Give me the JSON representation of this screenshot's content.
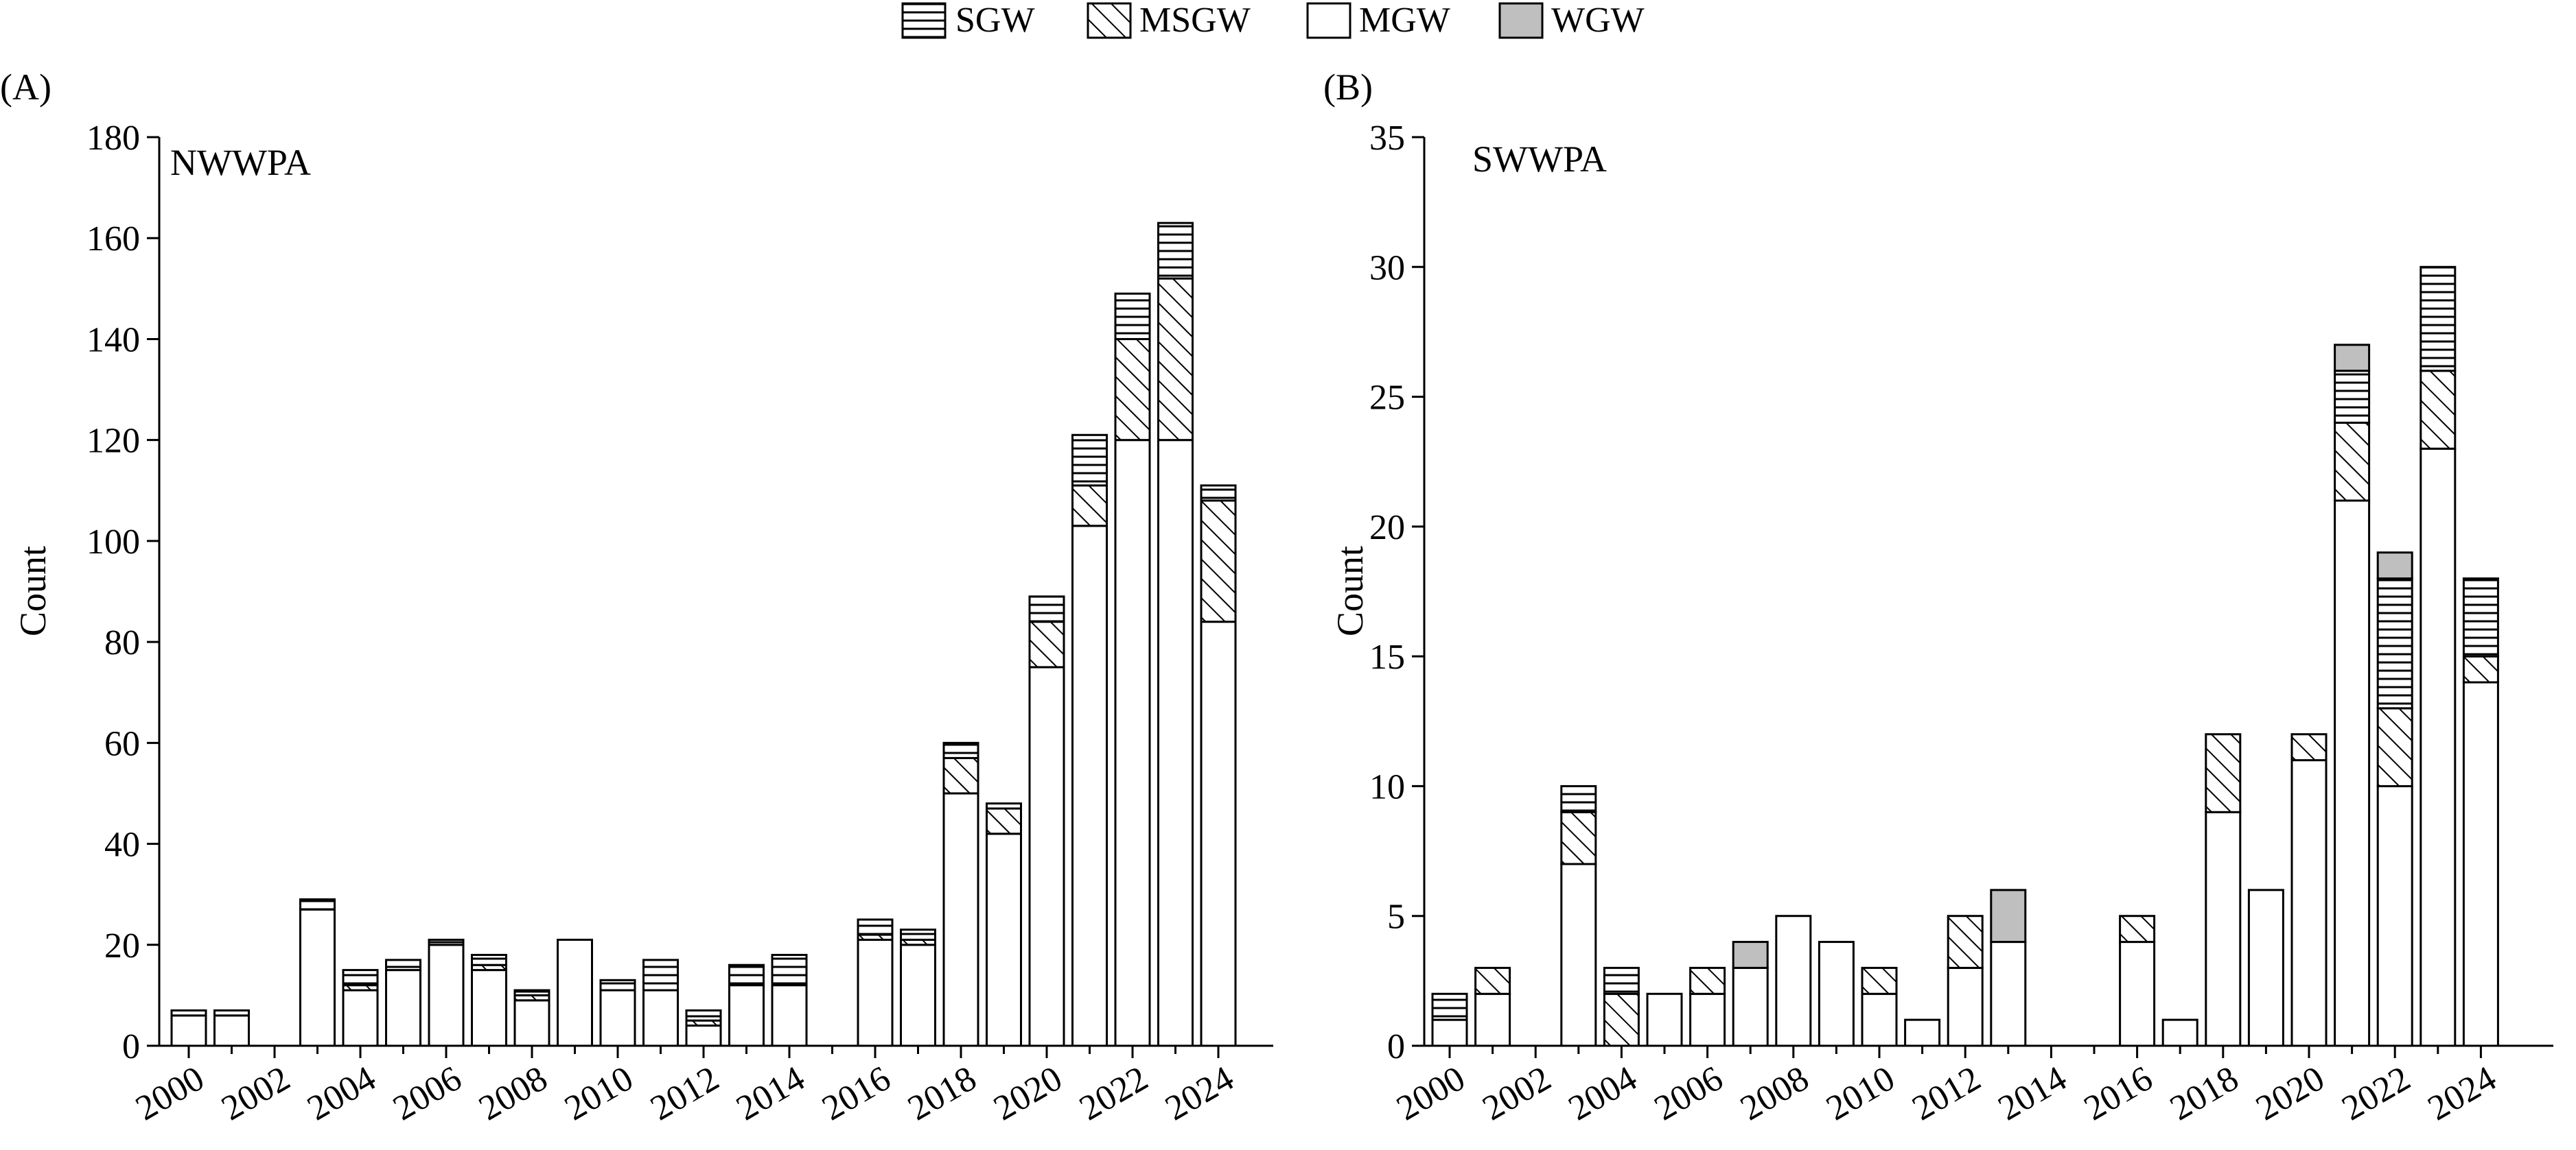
{
  "legend": {
    "placement": "top-center",
    "items": [
      {
        "key": "SGW",
        "label": "SGW",
        "pattern": "horizontal-lines"
      },
      {
        "key": "MSGW",
        "label": "MSGW",
        "pattern": "diagonal-hatch"
      },
      {
        "key": "MGW",
        "label": "MGW",
        "pattern": "white"
      },
      {
        "key": "WGW",
        "label": "WGW",
        "pattern": "gray",
        "color": "#bfbfbf"
      }
    ]
  },
  "chart_data": [
    {
      "type": "bar",
      "stacked": true,
      "panel_label": "(A)",
      "title": "NWWPA",
      "xlabel": "",
      "ylabel": "Count",
      "ylim": [
        0,
        180
      ],
      "yticks": [
        0,
        20,
        40,
        60,
        80,
        100,
        120,
        140,
        160,
        180
      ],
      "xticks": [
        "2000",
        "2002",
        "2004",
        "2006",
        "2008",
        "2010",
        "2012",
        "2014",
        "2016",
        "2018",
        "2020",
        "2022",
        "2024"
      ],
      "categories": [
        "2000",
        "2001",
        "2002",
        "2003",
        "2004",
        "2005",
        "2006",
        "2007",
        "2008",
        "2009",
        "2010",
        "2011",
        "2012",
        "2013",
        "2014",
        "2015",
        "2016",
        "2017",
        "2018",
        "2019",
        "2020",
        "2021",
        "2022",
        "2023",
        "2024"
      ],
      "series": [
        {
          "name": "MGW",
          "values": [
            6,
            6,
            0,
            27,
            11,
            15,
            20,
            15,
            9,
            21,
            11,
            11,
            4,
            12,
            12,
            0,
            21,
            20,
            50,
            42,
            75,
            103,
            120,
            120,
            84
          ]
        },
        {
          "name": "MSGW",
          "values": [
            0,
            0,
            0,
            0,
            1,
            0,
            0,
            1,
            1,
            0,
            0,
            0,
            1,
            0,
            0,
            0,
            1,
            1,
            7,
            5,
            9,
            8,
            20,
            32,
            24
          ]
        },
        {
          "name": "SGW",
          "values": [
            1,
            1,
            0,
            2,
            3,
            2,
            1,
            2,
            1,
            0,
            2,
            6,
            2,
            4,
            6,
            0,
            3,
            2,
            3,
            1,
            5,
            10,
            9,
            11,
            3
          ]
        },
        {
          "name": "WGW",
          "values": [
            0,
            0,
            0,
            0,
            0,
            0,
            0,
            0,
            0,
            0,
            0,
            0,
            0,
            0,
            0,
            0,
            0,
            0,
            0,
            0,
            0,
            0,
            0,
            0,
            0
          ]
        }
      ]
    },
    {
      "type": "bar",
      "stacked": true,
      "panel_label": "(B)",
      "title": "SWWPA",
      "xlabel": "",
      "ylabel": "Count",
      "ylim": [
        0,
        35
      ],
      "yticks": [
        0,
        5,
        10,
        15,
        20,
        25,
        30,
        35
      ],
      "xticks": [
        "2000",
        "2002",
        "2004",
        "2006",
        "2008",
        "2010",
        "2012",
        "2014",
        "2016",
        "2018",
        "2020",
        "2022",
        "2024"
      ],
      "categories": [
        "2000",
        "2001",
        "2002",
        "2003",
        "2004",
        "2005",
        "2006",
        "2007",
        "2008",
        "2009",
        "2010",
        "2011",
        "2012",
        "2013",
        "2014",
        "2015",
        "2016",
        "2017",
        "2018",
        "2019",
        "2020",
        "2021",
        "2022",
        "2023",
        "2024"
      ],
      "series": [
        {
          "name": "MGW",
          "values": [
            1,
            2,
            0,
            7,
            0,
            2,
            2,
            3,
            5,
            4,
            2,
            1,
            3,
            4,
            0,
            0,
            4,
            1,
            9,
            6,
            11,
            21,
            10,
            23,
            14
          ]
        },
        {
          "name": "MSGW",
          "values": [
            0,
            1,
            0,
            2,
            2,
            0,
            1,
            0,
            0,
            0,
            1,
            0,
            2,
            0,
            0,
            0,
            1,
            0,
            3,
            0,
            1,
            3,
            3,
            3,
            1
          ]
        },
        {
          "name": "SGW",
          "values": [
            1,
            0,
            0,
            1,
            1,
            0,
            0,
            0,
            0,
            0,
            0,
            0,
            0,
            0,
            0,
            0,
            0,
            0,
            0,
            0,
            0,
            2,
            5,
            4,
            3
          ]
        },
        {
          "name": "WGW",
          "values": [
            0,
            0,
            0,
            0,
            0,
            0,
            0,
            1,
            0,
            0,
            0,
            0,
            0,
            2,
            0,
            0,
            0,
            0,
            0,
            0,
            0,
            1,
            1,
            0,
            0
          ]
        }
      ]
    }
  ]
}
